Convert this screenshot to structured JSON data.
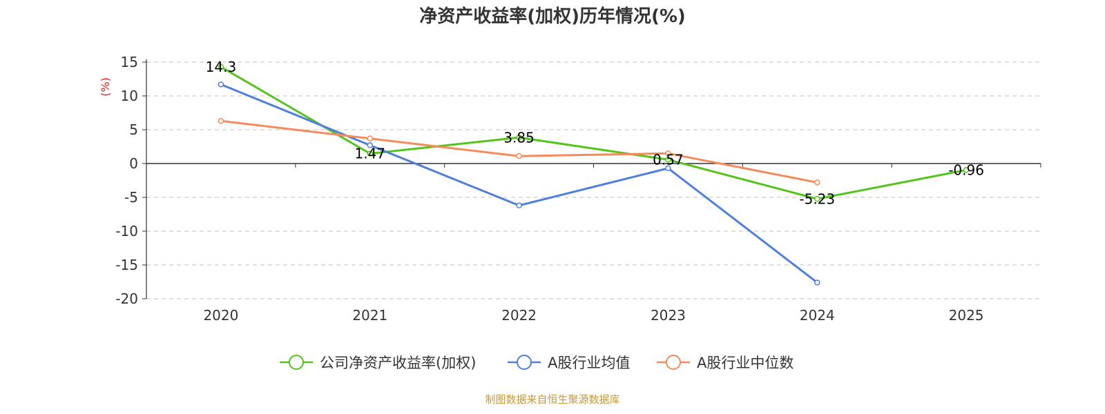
{
  "chart_data": {
    "type": "line",
    "title": "净资产收益率(加权)历年情况(%)",
    "ylabel": "(%)",
    "categories": [
      "2020",
      "2021",
      "2022",
      "2023",
      "2024",
      "2025"
    ],
    "ylim": [
      -20,
      15
    ],
    "yticks": [
      15,
      10,
      5,
      0,
      -5,
      -10,
      -15,
      -20
    ],
    "grid": true,
    "legend_position": "bottom",
    "series": [
      {
        "name": "公司净资产收益率(加权)",
        "color": "#52c41a",
        "values": [
          14.3,
          1.47,
          3.85,
          0.57,
          -5.23,
          -0.96
        ],
        "labels": [
          "14.3",
          "1.47",
          "3.85",
          "0.57",
          "-5.23",
          "-0.96"
        ]
      },
      {
        "name": "A股行业均值",
        "color": "#4f7fdc",
        "values": [
          11.7,
          2.7,
          -6.2,
          -0.7,
          -17.6,
          null
        ]
      },
      {
        "name": "A股行业中位数",
        "color": "#f58b5a",
        "values": [
          6.3,
          3.7,
          1.1,
          1.5,
          -2.8,
          null
        ]
      }
    ],
    "source": "制图数据来自恒生聚源数据库"
  }
}
